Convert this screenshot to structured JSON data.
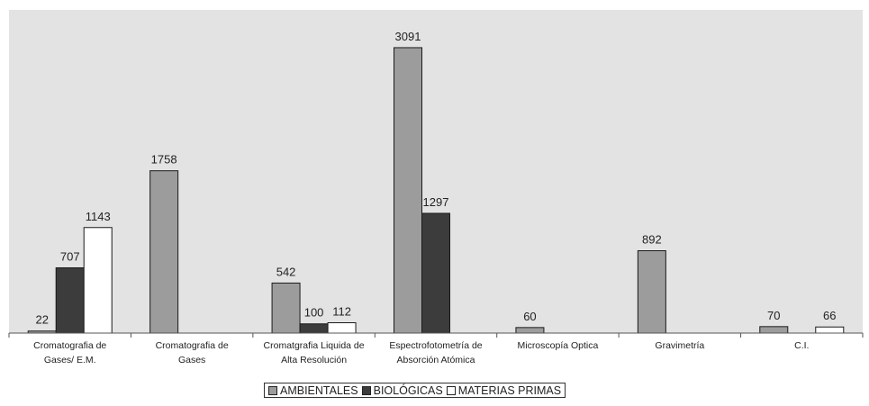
{
  "chart_data": {
    "type": "bar",
    "categories": [
      [
        "Cromatografia de",
        "Gases/ E.M."
      ],
      [
        "Cromatografia de",
        "Gases"
      ],
      [
        "Cromatgrafia Liquida de",
        "Alta Resolución"
      ],
      [
        "Espectrofotometría de",
        "Absorción Atómica"
      ],
      [
        "Microscopía Optica"
      ],
      [
        "Gravimetría"
      ],
      [
        "C.I."
      ]
    ],
    "series": [
      {
        "name": "AMBIENTALES",
        "color": "#9c9c9c",
        "values": [
          22,
          1758,
          542,
          3091,
          60,
          892,
          70
        ]
      },
      {
        "name": "BIOLÓGICAS",
        "color": "#3c3c3c",
        "values": [
          707,
          null,
          100,
          1297,
          null,
          null,
          null
        ]
      },
      {
        "name": "MATERIAS PRIMAS",
        "color": "#ffffff",
        "values": [
          1143,
          null,
          112,
          null,
          null,
          null,
          66
        ]
      }
    ],
    "ylim": [
      0,
      3500
    ],
    "legend_position": "bottom",
    "plot_background": "#e3e3e3",
    "grid": false
  }
}
